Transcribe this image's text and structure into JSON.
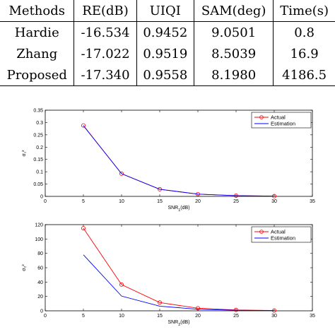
{
  "table": {
    "headers": [
      "Methods",
      "RE(dB)",
      "UIQI",
      "SAM(deg)",
      "Time(s)"
    ],
    "rows": [
      [
        "Hardie",
        "-16.534",
        "0.9452",
        "9.0501",
        "0.8"
      ],
      [
        "Zhang",
        "-17.022",
        "0.9519",
        "8.5039",
        "16.9"
      ],
      [
        "Proposed",
        "-17.340",
        "0.9558",
        "8.1980",
        "4186.5"
      ]
    ]
  },
  "chart_data": [
    {
      "type": "line",
      "title": "",
      "xlabel": "SNR",
      "xlabel_sub": "1",
      "xlabel_suffix": "(dB)",
      "ylabel": "σ₁²",
      "xlim": [
        0,
        35
      ],
      "ylim": [
        0,
        0.35
      ],
      "xticks": [
        "0",
        "5",
        "10",
        "15",
        "20",
        "25",
        "30",
        "35"
      ],
      "yticks": [
        "0",
        "0.05",
        "0.1",
        "0.15",
        "0.2",
        "0.25",
        "0.3",
        "0.35"
      ],
      "grid": false,
      "legend_position": "top-right",
      "x": [
        5,
        10,
        15,
        20,
        25,
        30
      ],
      "series": [
        {
          "name": "Actual",
          "color": "#ff0000",
          "marker": "circle",
          "values": [
            0.288,
            0.092,
            0.029,
            0.009,
            0.003,
            0.001
          ]
        },
        {
          "name": "Estimation",
          "color": "#0000ff",
          "marker": "none",
          "values": [
            0.287,
            0.092,
            0.029,
            0.009,
            0.003,
            0.001
          ]
        }
      ]
    },
    {
      "type": "line",
      "title": "",
      "xlabel": "SNR",
      "xlabel_sub": "2",
      "xlabel_suffix": "(dB)",
      "ylabel": "σ₂²",
      "xlim": [
        0,
        35
      ],
      "ylim": [
        0,
        120
      ],
      "xticks": [
        "0",
        "5",
        "10",
        "15",
        "20",
        "25",
        "30",
        "35"
      ],
      "yticks": [
        "0",
        "20",
        "40",
        "60",
        "80",
        "100",
        "120"
      ],
      "grid": false,
      "legend_position": "top-right",
      "x": [
        5,
        10,
        15,
        20,
        25,
        30
      ],
      "series": [
        {
          "name": "Actual",
          "color": "#ff0000",
          "marker": "circle",
          "values": [
            115,
            36.5,
            11.5,
            3.6,
            1.2,
            0.4
          ]
        },
        {
          "name": "Estimation",
          "color": "#0000ff",
          "marker": "none",
          "values": [
            78,
            20.5,
            6.5,
            2.2,
            0.8,
            0.3
          ]
        }
      ]
    }
  ]
}
